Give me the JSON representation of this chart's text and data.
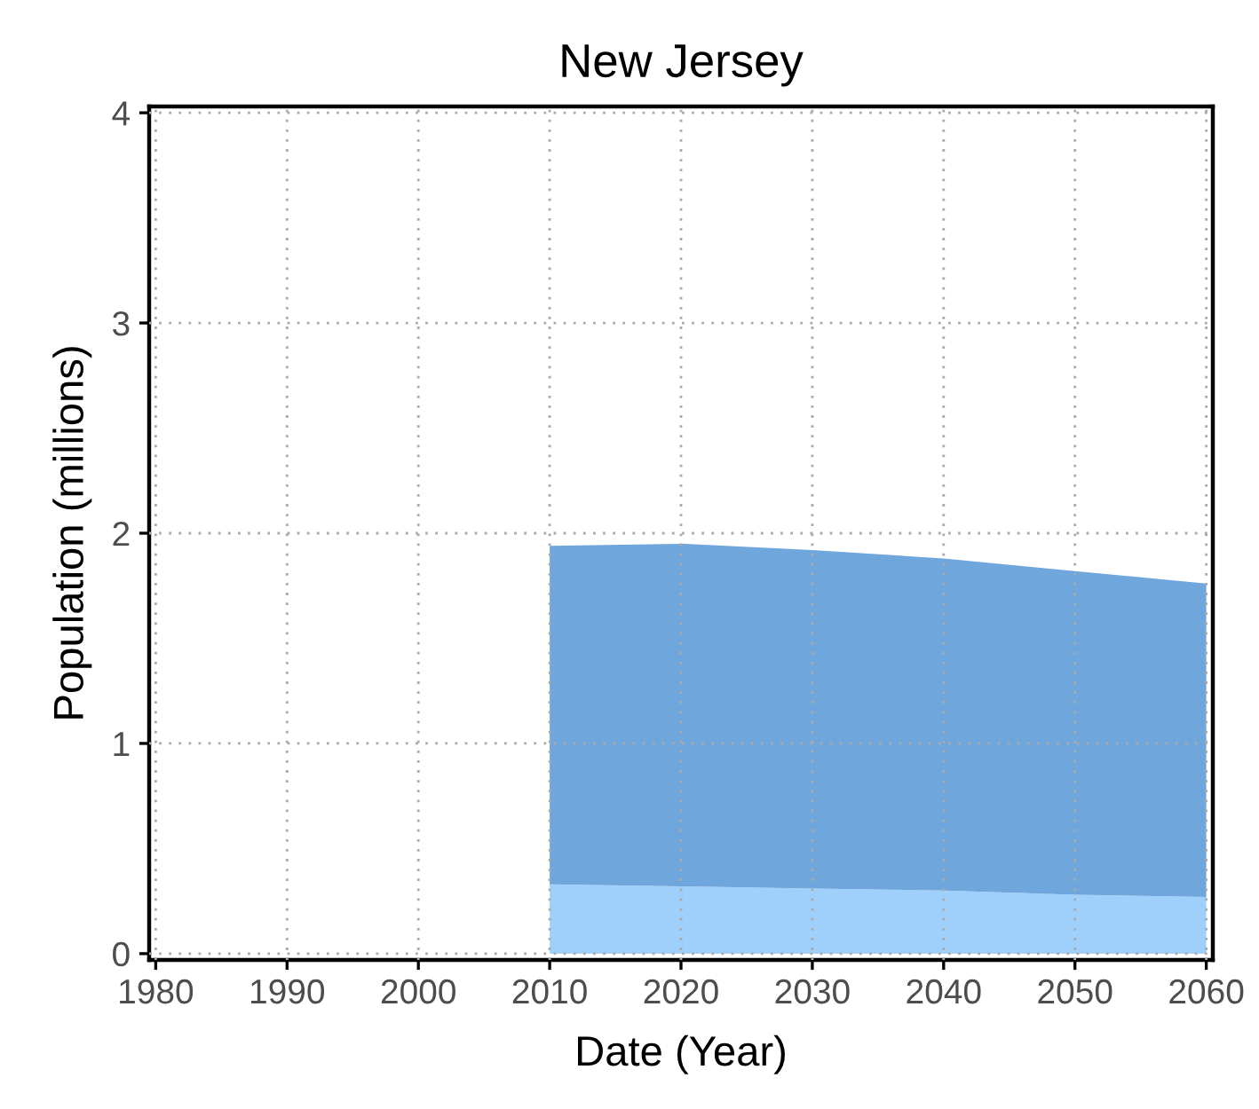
{
  "chart_data": {
    "type": "area",
    "title": "New Jersey",
    "xlabel": "Date (Year)",
    "ylabel": "Population (millions)",
    "x": [
      2010,
      2020,
      2030,
      2040,
      2050,
      2060
    ],
    "stacked": true,
    "series": [
      {
        "color": "#9fd0fb",
        "values": [
          0.33,
          0.32,
          0.31,
          0.3,
          0.28,
          0.27
        ]
      },
      {
        "color": "#6fa6dc",
        "values": [
          1.61,
          1.63,
          1.61,
          1.58,
          1.54,
          1.49
        ]
      }
    ],
    "xlim": [
      1979.5,
      2060.5
    ],
    "xticks": [
      1980,
      1990,
      2000,
      2010,
      2020,
      2030,
      2040,
      2050,
      2060
    ],
    "ylim": [
      -0.03,
      4.03
    ],
    "yticks": [
      0,
      1,
      2,
      3,
      4
    ],
    "grid": true
  }
}
